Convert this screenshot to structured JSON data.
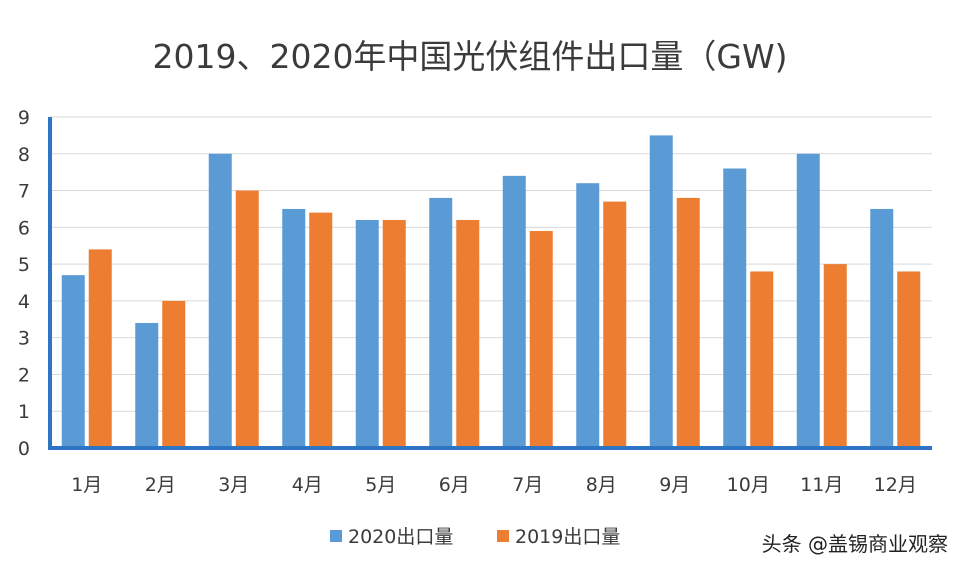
{
  "chart_data": {
    "type": "bar",
    "title": "2019、2020年中国光伏组件出口量（GW)",
    "xlabel": "",
    "ylabel": "",
    "categories": [
      "1月",
      "2月",
      "3月",
      "4月",
      "5月",
      "6月",
      "7月",
      "8月",
      "9月",
      "10月",
      "11月",
      "12月"
    ],
    "series": [
      {
        "name": "2020出口量",
        "color": "#5b9bd5",
        "values": [
          4.7,
          3.4,
          8.0,
          6.5,
          6.2,
          6.8,
          7.4,
          7.2,
          8.5,
          7.6,
          8.0,
          6.5
        ]
      },
      {
        "name": "2019出口量",
        "color": "#ed7d31",
        "values": [
          5.4,
          4.0,
          7.0,
          6.4,
          6.2,
          6.2,
          5.9,
          6.7,
          6.8,
          4.8,
          5.0,
          4.8
        ]
      }
    ],
    "yticks": [
      "0",
      "1",
      "2",
      "3",
      "4",
      "5",
      "6",
      "7",
      "8",
      "9"
    ],
    "ylim": [
      0,
      9
    ],
    "grid": true,
    "legend_position": "bottom"
  },
  "watermark": {
    "source": "头条 @盖锡商业观察"
  },
  "colors": {
    "axis": "#2e75c3",
    "grid": "#d9d9d9"
  }
}
